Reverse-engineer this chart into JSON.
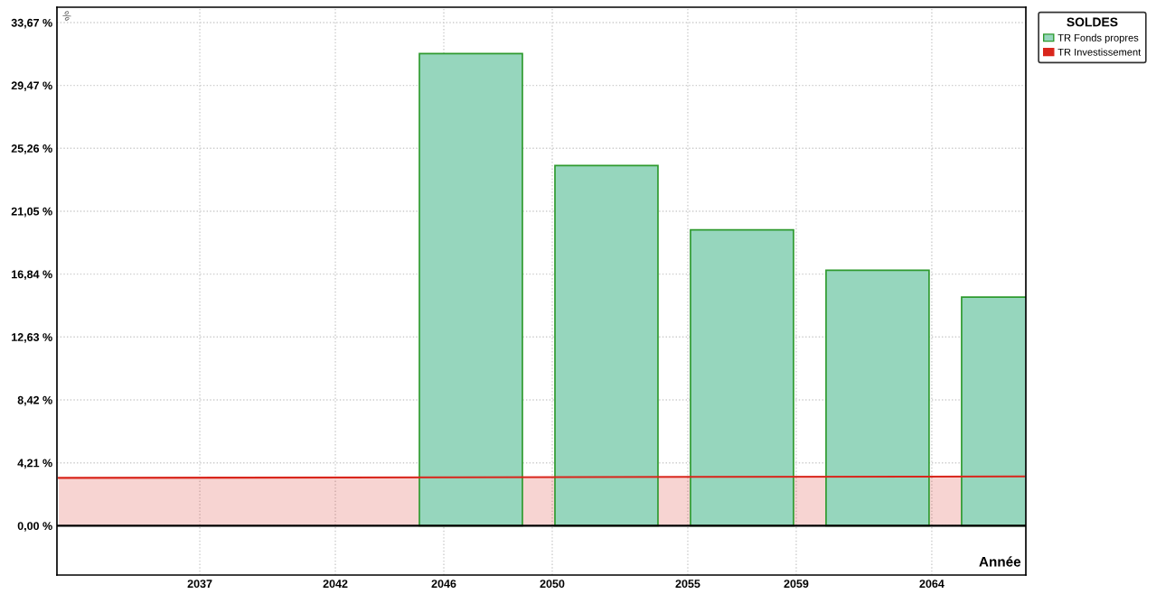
{
  "chart_data": {
    "type": "bar",
    "xlabel": "Année",
    "ylabel": "%",
    "legend_title": "SOLDES",
    "xlim": [
      2031.73,
      2067.47
    ],
    "ylim": [
      -3.3,
      34.7
    ],
    "xticks": [
      2037,
      2042,
      2046,
      2050,
      2055,
      2059,
      2064
    ],
    "yticks": [
      {
        "value": 0,
        "label": "0,00 %"
      },
      {
        "value": 4.21,
        "label": "4,21 %"
      },
      {
        "value": 8.42,
        "label": "8,42 %"
      },
      {
        "value": 12.63,
        "label": "12,63 %"
      },
      {
        "value": 16.84,
        "label": "16,84 %"
      },
      {
        "value": 21.05,
        "label": "21,05 %"
      },
      {
        "value": 25.26,
        "label": "25,26 %"
      },
      {
        "value": 29.47,
        "label": "29,47 %"
      },
      {
        "value": 33.67,
        "label": "33,67 %"
      }
    ],
    "grid": true,
    "legend": "top right",
    "series": [
      {
        "name": "TR Fonds propres",
        "color": "#96d6bd",
        "x": [
          2047,
          2052,
          2057,
          2062,
          2067
        ],
        "values": [
          31.6,
          24.1,
          19.8,
          17.1,
          15.3
        ]
      },
      {
        "name": "TR Investissement",
        "type": "area",
        "color": "#d9261c",
        "x": [
          2031.8,
          2067.4
        ],
        "values": [
          3.2,
          3.3
        ]
      }
    ]
  }
}
